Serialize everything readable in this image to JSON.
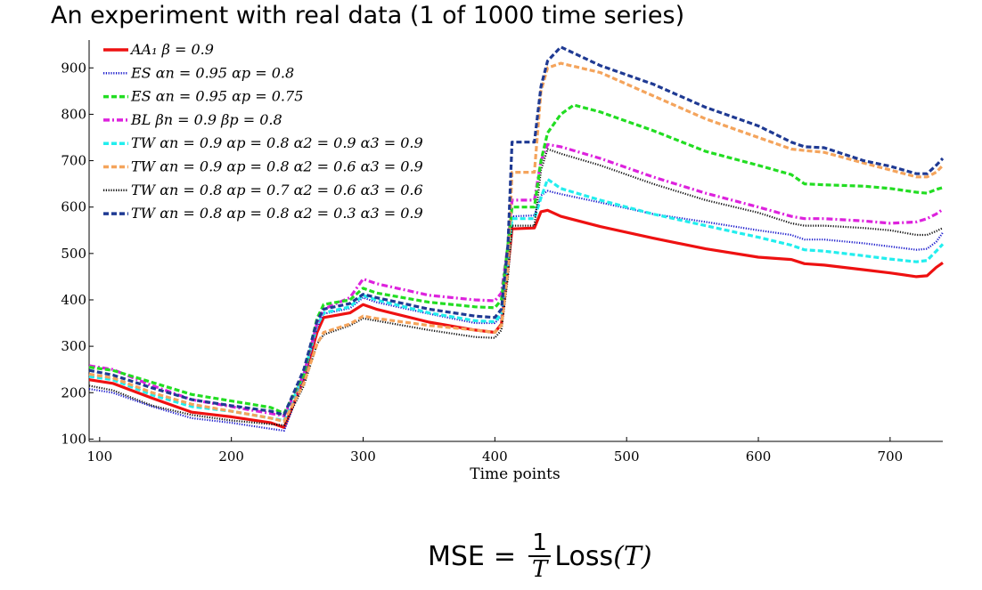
{
  "slide": {
    "title": "An experiment with real data (1 of 1000 time series)",
    "formula": {
      "lhs": "MSE",
      "equals": "=",
      "numerator": "1",
      "denominator": "T",
      "function": "Loss",
      "argument": "(T)"
    }
  },
  "chart_data": {
    "type": "line",
    "title": "",
    "xlabel": "Time points",
    "ylabel": "",
    "xlim": [
      92,
      740
    ],
    "ylim": [
      95,
      960
    ],
    "xticks": [
      100,
      200,
      300,
      400,
      500,
      600,
      700
    ],
    "yticks": [
      100,
      200,
      300,
      400,
      500,
      600,
      700,
      800,
      900
    ],
    "grid": false,
    "legend_position": "top-left",
    "series": [
      {
        "name": "AA₁  β = 0.9",
        "color": "#ee1111",
        "dash": "solid",
        "points": [
          [
            92,
            228
          ],
          [
            110,
            220
          ],
          [
            140,
            188
          ],
          [
            170,
            158
          ],
          [
            200,
            148
          ],
          [
            230,
            135
          ],
          [
            240,
            125
          ],
          [
            255,
            230
          ],
          [
            265,
            330
          ],
          [
            270,
            362
          ],
          [
            290,
            372
          ],
          [
            300,
            390
          ],
          [
            310,
            380
          ],
          [
            350,
            352
          ],
          [
            385,
            335
          ],
          [
            400,
            330
          ],
          [
            405,
            348
          ],
          [
            410,
            470
          ],
          [
            413,
            553
          ],
          [
            430,
            555
          ],
          [
            435,
            590
          ],
          [
            440,
            593
          ],
          [
            450,
            580
          ],
          [
            480,
            558
          ],
          [
            520,
            533
          ],
          [
            560,
            510
          ],
          [
            600,
            492
          ],
          [
            625,
            487
          ],
          [
            635,
            478
          ],
          [
            650,
            475
          ],
          [
            680,
            465
          ],
          [
            700,
            458
          ],
          [
            720,
            450
          ],
          [
            728,
            452
          ],
          [
            735,
            470
          ],
          [
            740,
            480
          ]
        ]
      },
      {
        "name": "ES  αn = 0.95  αp = 0.8",
        "color": "#1a1acc",
        "dash": "dotted",
        "points": [
          [
            92,
            208
          ],
          [
            110,
            200
          ],
          [
            140,
            170
          ],
          [
            170,
            145
          ],
          [
            200,
            135
          ],
          [
            230,
            122
          ],
          [
            240,
            118
          ],
          [
            255,
            230
          ],
          [
            265,
            340
          ],
          [
            270,
            370
          ],
          [
            290,
            382
          ],
          [
            300,
            405
          ],
          [
            310,
            395
          ],
          [
            350,
            370
          ],
          [
            385,
            350
          ],
          [
            400,
            350
          ],
          [
            405,
            365
          ],
          [
            410,
            480
          ],
          [
            413,
            580
          ],
          [
            430,
            582
          ],
          [
            435,
            625
          ],
          [
            440,
            635
          ],
          [
            450,
            628
          ],
          [
            480,
            610
          ],
          [
            520,
            585
          ],
          [
            560,
            568
          ],
          [
            600,
            550
          ],
          [
            625,
            540
          ],
          [
            635,
            530
          ],
          [
            650,
            530
          ],
          [
            680,
            522
          ],
          [
            700,
            515
          ],
          [
            720,
            508
          ],
          [
            728,
            510
          ],
          [
            735,
            525
          ],
          [
            740,
            545
          ]
        ]
      },
      {
        "name": "ES  αn = 0.95  αp = 0.75",
        "color": "#22dd22",
        "dash": "dashed",
        "points": [
          [
            92,
            255
          ],
          [
            110,
            248
          ],
          [
            140,
            222
          ],
          [
            170,
            196
          ],
          [
            200,
            182
          ],
          [
            230,
            168
          ],
          [
            240,
            155
          ],
          [
            255,
            240
          ],
          [
            265,
            360
          ],
          [
            270,
            390
          ],
          [
            290,
            400
          ],
          [
            300,
            425
          ],
          [
            310,
            415
          ],
          [
            350,
            395
          ],
          [
            385,
            385
          ],
          [
            400,
            383
          ],
          [
            405,
            400
          ],
          [
            410,
            520
          ],
          [
            413,
            600
          ],
          [
            430,
            600
          ],
          [
            435,
            700
          ],
          [
            440,
            760
          ],
          [
            450,
            800
          ],
          [
            460,
            820
          ],
          [
            480,
            805
          ],
          [
            520,
            765
          ],
          [
            560,
            720
          ],
          [
            600,
            690
          ],
          [
            625,
            670
          ],
          [
            635,
            650
          ],
          [
            650,
            648
          ],
          [
            680,
            645
          ],
          [
            700,
            640
          ],
          [
            720,
            632
          ],
          [
            728,
            630
          ],
          [
            735,
            638
          ],
          [
            740,
            642
          ]
        ]
      },
      {
        "name": "BL  βn = 0.9  βp = 0.8",
        "color": "#dd22dd",
        "dash": "dashdot",
        "points": [
          [
            92,
            258
          ],
          [
            110,
            250
          ],
          [
            140,
            215
          ],
          [
            170,
            185
          ],
          [
            200,
            170
          ],
          [
            230,
            155
          ],
          [
            240,
            150
          ],
          [
            255,
            240
          ],
          [
            265,
            350
          ],
          [
            270,
            380
          ],
          [
            290,
            405
          ],
          [
            300,
            445
          ],
          [
            310,
            435
          ],
          [
            350,
            410
          ],
          [
            385,
            400
          ],
          [
            400,
            398
          ],
          [
            405,
            415
          ],
          [
            410,
            520
          ],
          [
            413,
            615
          ],
          [
            430,
            615
          ],
          [
            435,
            700
          ],
          [
            440,
            735
          ],
          [
            450,
            730
          ],
          [
            480,
            705
          ],
          [
            520,
            665
          ],
          [
            560,
            630
          ],
          [
            600,
            600
          ],
          [
            625,
            580
          ],
          [
            635,
            575
          ],
          [
            650,
            575
          ],
          [
            680,
            570
          ],
          [
            700,
            565
          ],
          [
            720,
            568
          ],
          [
            728,
            575
          ],
          [
            735,
            585
          ],
          [
            740,
            595
          ]
        ]
      },
      {
        "name": "TW  αn = 0.9  αp = 0.8  α2 = 0.9  α3 = 0.9",
        "color": "#22eeee",
        "dash": "dashed",
        "points": [
          [
            92,
            235
          ],
          [
            110,
            228
          ],
          [
            140,
            195
          ],
          [
            170,
            170
          ],
          [
            200,
            160
          ],
          [
            230,
            145
          ],
          [
            240,
            140
          ],
          [
            255,
            240
          ],
          [
            265,
            345
          ],
          [
            270,
            372
          ],
          [
            290,
            385
          ],
          [
            300,
            410
          ],
          [
            310,
            400
          ],
          [
            350,
            372
          ],
          [
            385,
            355
          ],
          [
            400,
            353
          ],
          [
            405,
            370
          ],
          [
            410,
            480
          ],
          [
            413,
            575
          ],
          [
            430,
            575
          ],
          [
            435,
            620
          ],
          [
            440,
            660
          ],
          [
            450,
            640
          ],
          [
            480,
            615
          ],
          [
            520,
            585
          ],
          [
            560,
            560
          ],
          [
            600,
            535
          ],
          [
            625,
            518
          ],
          [
            635,
            508
          ],
          [
            650,
            505
          ],
          [
            680,
            495
          ],
          [
            700,
            488
          ],
          [
            720,
            482
          ],
          [
            728,
            485
          ],
          [
            735,
            505
          ],
          [
            740,
            520
          ]
        ]
      },
      {
        "name": "TW  αn = 0.9  αp = 0.8  α2 = 0.6  α3 = 0.9",
        "color": "#f4a45c",
        "dash": "dashed",
        "points": [
          [
            92,
            240
          ],
          [
            110,
            232
          ],
          [
            140,
            200
          ],
          [
            170,
            175
          ],
          [
            200,
            160
          ],
          [
            230,
            145
          ],
          [
            240,
            138
          ],
          [
            255,
            220
          ],
          [
            265,
            305
          ],
          [
            270,
            330
          ],
          [
            290,
            348
          ],
          [
            300,
            365
          ],
          [
            310,
            360
          ],
          [
            350,
            345
          ],
          [
            385,
            335
          ],
          [
            400,
            330
          ],
          [
            405,
            345
          ],
          [
            410,
            470
          ],
          [
            413,
            675
          ],
          [
            430,
            675
          ],
          [
            435,
            850
          ],
          [
            440,
            900
          ],
          [
            450,
            910
          ],
          [
            480,
            890
          ],
          [
            520,
            840
          ],
          [
            560,
            790
          ],
          [
            600,
            750
          ],
          [
            625,
            725
          ],
          [
            635,
            722
          ],
          [
            650,
            718
          ],
          [
            680,
            695
          ],
          [
            700,
            680
          ],
          [
            720,
            665
          ],
          [
            728,
            665
          ],
          [
            735,
            675
          ],
          [
            740,
            690
          ]
        ]
      },
      {
        "name": "TW  αn = 0.8  αp = 0.7  α2 = 0.6  α3 = 0.6",
        "color": "#111111",
        "dash": "dotted",
        "points": [
          [
            92,
            215
          ],
          [
            110,
            205
          ],
          [
            140,
            172
          ],
          [
            170,
            152
          ],
          [
            200,
            140
          ],
          [
            230,
            132
          ],
          [
            240,
            130
          ],
          [
            255,
            215
          ],
          [
            265,
            305
          ],
          [
            270,
            325
          ],
          [
            290,
            345
          ],
          [
            300,
            360
          ],
          [
            310,
            355
          ],
          [
            350,
            335
          ],
          [
            385,
            320
          ],
          [
            400,
            318
          ],
          [
            405,
            335
          ],
          [
            410,
            450
          ],
          [
            413,
            560
          ],
          [
            430,
            560
          ],
          [
            435,
            680
          ],
          [
            440,
            725
          ],
          [
            450,
            715
          ],
          [
            480,
            690
          ],
          [
            520,
            650
          ],
          [
            560,
            615
          ],
          [
            600,
            588
          ],
          [
            625,
            565
          ],
          [
            635,
            560
          ],
          [
            650,
            560
          ],
          [
            680,
            555
          ],
          [
            700,
            550
          ],
          [
            720,
            540
          ],
          [
            728,
            540
          ],
          [
            735,
            548
          ],
          [
            740,
            555
          ]
        ]
      },
      {
        "name": "TW  αn = 0.8  αp = 0.8  α2 = 0.3  α3 = 0.9",
        "color": "#1f3a93",
        "dash": "dashed",
        "points": [
          [
            92,
            248
          ],
          [
            110,
            238
          ],
          [
            140,
            210
          ],
          [
            170,
            185
          ],
          [
            200,
            172
          ],
          [
            230,
            160
          ],
          [
            240,
            152
          ],
          [
            255,
            250
          ],
          [
            265,
            355
          ],
          [
            270,
            380
          ],
          [
            290,
            392
          ],
          [
            300,
            412
          ],
          [
            310,
            405
          ],
          [
            350,
            380
          ],
          [
            385,
            365
          ],
          [
            400,
            362
          ],
          [
            405,
            380
          ],
          [
            410,
            520
          ],
          [
            413,
            740
          ],
          [
            430,
            740
          ],
          [
            435,
            860
          ],
          [
            440,
            915
          ],
          [
            450,
            945
          ],
          [
            480,
            905
          ],
          [
            520,
            865
          ],
          [
            560,
            815
          ],
          [
            600,
            775
          ],
          [
            625,
            740
          ],
          [
            635,
            730
          ],
          [
            650,
            728
          ],
          [
            680,
            700
          ],
          [
            700,
            688
          ],
          [
            720,
            672
          ],
          [
            728,
            672
          ],
          [
            735,
            690
          ],
          [
            740,
            705
          ]
        ]
      }
    ]
  }
}
